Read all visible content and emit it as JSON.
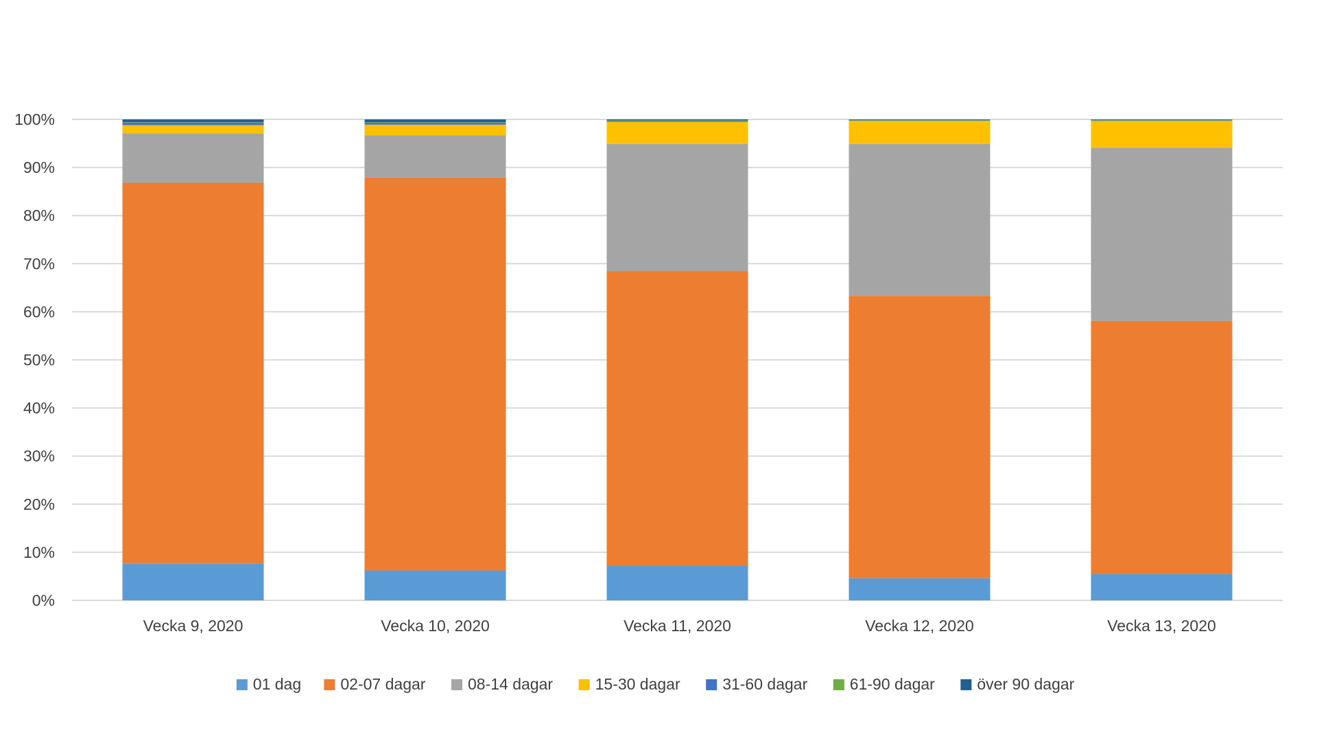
{
  "chart_data": {
    "type": "bar",
    "stacked": true,
    "percent": true,
    "title": "",
    "xlabel": "",
    "ylabel": "",
    "ylim": [
      0,
      100
    ],
    "yticks": [
      "0%",
      "10%",
      "20%",
      "30%",
      "40%",
      "50%",
      "60%",
      "70%",
      "80%",
      "90%",
      "100%"
    ],
    "ytick_values": [
      0,
      10,
      20,
      30,
      40,
      50,
      60,
      70,
      80,
      90,
      100
    ],
    "grid": true,
    "legend_position": "bottom",
    "categories": [
      "Vecka 9, 2020",
      "Vecka 10, 2020",
      "Vecka 11, 2020",
      "Vecka 12, 2020",
      "Vecka 13, 2020"
    ],
    "series": [
      {
        "name": "01 dag",
        "color": "#5b9bd5",
        "values": [
          7.6,
          6.2,
          7.2,
          4.6,
          5.5
        ]
      },
      {
        "name": "02-07 dagar",
        "color": "#ed7d31",
        "values": [
          79.2,
          81.7,
          61.2,
          58.7,
          52.6
        ]
      },
      {
        "name": "08-14 dagar",
        "color": "#a5a5a5",
        "values": [
          10.3,
          8.8,
          26.5,
          31.6,
          36.0
        ]
      },
      {
        "name": "15-30 dagar",
        "color": "#ffc000",
        "values": [
          1.7,
          2.2,
          4.6,
          4.8,
          5.6
        ]
      },
      {
        "name": "31-60 dagar",
        "color": "#4472c4",
        "values": [
          0.5,
          0.4,
          0.2,
          0.1,
          0.1
        ]
      },
      {
        "name": "61-90 dagar",
        "color": "#70ad47",
        "values": [
          0.1,
          0.1,
          0.1,
          0.1,
          0.1
        ]
      },
      {
        "name": "över 90 dagar",
        "color": "#255e91",
        "values": [
          0.6,
          0.6,
          0.2,
          0.1,
          0.1
        ]
      }
    ]
  }
}
